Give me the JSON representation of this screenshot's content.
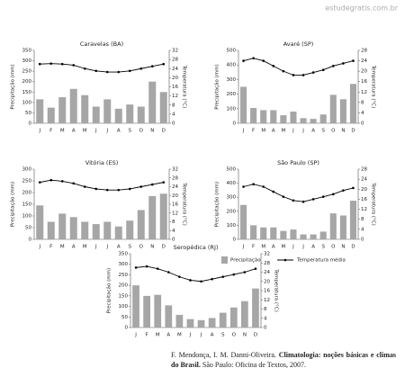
{
  "watermark": "estudegratis.com.br",
  "chart_data": [
    {
      "type": "bar-line",
      "title": "Caravelas (BA)",
      "y_label": "Precipitação (mm)",
      "y2_label": "Temperatura (°C)",
      "categories": [
        "J",
        "F",
        "M",
        "A",
        "M",
        "J",
        "J",
        "A",
        "S",
        "O",
        "N",
        "D"
      ],
      "series": [
        {
          "color": "#a6a6a6",
          "values": [
            115,
            75,
            125,
            165,
            135,
            80,
            115,
            70,
            90,
            80,
            200,
            150
          ]
        },
        {
          "color": "#000000",
          "axis": "y2",
          "values": [
            26,
            26.2,
            26,
            25.5,
            24,
            23,
            22.5,
            22.5,
            23,
            24,
            25,
            26
          ]
        }
      ],
      "ylim": [
        0,
        350
      ],
      "yticks": [
        0,
        50,
        100,
        150,
        200,
        250,
        300,
        350
      ],
      "y2lim": [
        0,
        32
      ],
      "y2ticks": [
        0,
        4,
        8,
        12,
        16,
        20,
        24,
        28,
        32
      ]
    },
    {
      "type": "bar-line",
      "title": "Avaré (SP)",
      "y_label": "Precipitação (mm)",
      "y2_label": "Temperatura (°C)",
      "categories": [
        "J",
        "F",
        "M",
        "A",
        "M",
        "J",
        "J",
        "A",
        "S",
        "O",
        "N",
        "D"
      ],
      "series": [
        {
          "color": "#a6a6a6",
          "values": [
            250,
            105,
            90,
            90,
            55,
            80,
            35,
            30,
            60,
            195,
            165,
            270
          ]
        },
        {
          "color": "#000000",
          "axis": "y2",
          "values": [
            24,
            25,
            24,
            22,
            20,
            18.5,
            18.5,
            19.5,
            20.5,
            22,
            23,
            24
          ]
        }
      ],
      "ylim": [
        0,
        500
      ],
      "yticks": [
        0,
        100,
        200,
        300,
        400,
        500
      ],
      "y2lim": [
        0,
        28
      ],
      "y2ticks": [
        0,
        4,
        8,
        12,
        16,
        20,
        24,
        28
      ]
    },
    {
      "type": "bar-line",
      "title": "Vitória (ES)",
      "y_label": "Precipitação (mm)",
      "y2_label": "Temperatura (°C)",
      "categories": [
        "J",
        "F",
        "M",
        "A",
        "M",
        "J",
        "J",
        "A",
        "S",
        "O",
        "N",
        "D"
      ],
      "series": [
        {
          "color": "#a6a6a6",
          "values": [
            145,
            75,
            110,
            95,
            75,
            65,
            75,
            55,
            80,
            125,
            185,
            195
          ]
        },
        {
          "color": "#000000",
          "axis": "y2",
          "values": [
            26,
            27,
            26.5,
            25.5,
            24,
            23,
            22.5,
            22.5,
            23,
            24,
            25,
            26
          ]
        }
      ],
      "ylim": [
        0,
        300
      ],
      "yticks": [
        0,
        50,
        100,
        150,
        200,
        250,
        300
      ],
      "y2lim": [
        0,
        32
      ],
      "y2ticks": [
        0,
        4,
        8,
        12,
        16,
        20,
        24,
        28,
        32
      ]
    },
    {
      "type": "bar-line",
      "title": "São Paulo (SP)",
      "y_label": "Precipitação (mm)",
      "y2_label": "Temperatura (°C)",
      "categories": [
        "J",
        "F",
        "M",
        "A",
        "M",
        "J",
        "J",
        "A",
        "S",
        "O",
        "N",
        "D"
      ],
      "series": [
        {
          "color": "#a6a6a6",
          "values": [
            245,
            100,
            85,
            85,
            60,
            70,
            35,
            35,
            55,
            185,
            170,
            275
          ]
        },
        {
          "color": "#000000",
          "axis": "y2",
          "values": [
            21,
            22,
            21,
            19,
            17,
            15.5,
            15,
            16,
            17,
            18,
            19.5,
            20.5
          ]
        }
      ],
      "ylim": [
        0,
        500
      ],
      "yticks": [
        0,
        100,
        200,
        300,
        400,
        500
      ],
      "y2lim": [
        0,
        28
      ],
      "y2ticks": [
        0,
        4,
        8,
        12,
        16,
        20,
        24,
        28
      ]
    },
    {
      "type": "bar-line",
      "title": "Seropédica (RJ)",
      "y_label": "Precipitação (mm)",
      "y2_label": "Temperatura (°C)",
      "categories": [
        "J",
        "F",
        "M",
        "A",
        "M",
        "J",
        "J",
        "A",
        "S",
        "O",
        "N",
        "D"
      ],
      "series": [
        {
          "color": "#a6a6a6",
          "values": [
            200,
            150,
            155,
            105,
            60,
            40,
            35,
            45,
            70,
            95,
            125,
            185
          ]
        },
        {
          "color": "#000000",
          "axis": "y2",
          "values": [
            26,
            26.5,
            25.5,
            24,
            22,
            20.5,
            20,
            21,
            22,
            23,
            24,
            25.5
          ]
        }
      ],
      "ylim": [
        0,
        350
      ],
      "yticks": [
        0,
        50,
        100,
        150,
        200,
        250,
        300,
        350
      ],
      "y2lim": [
        0,
        32
      ],
      "y2ticks": [
        0,
        4,
        8,
        12,
        16,
        20,
        24,
        28,
        32
      ]
    }
  ],
  "legend": [
    {
      "name": "Precipitação"
    },
    {
      "name": "Temperatura média"
    }
  ],
  "citation": {
    "authors": "F. Mendonça, I. M. Danni-Oliveira.",
    "title": "Climatologia: noções básicas e climas do Brasil.",
    "publisher": "São Paulo: Oficina de Textos, 2007."
  }
}
